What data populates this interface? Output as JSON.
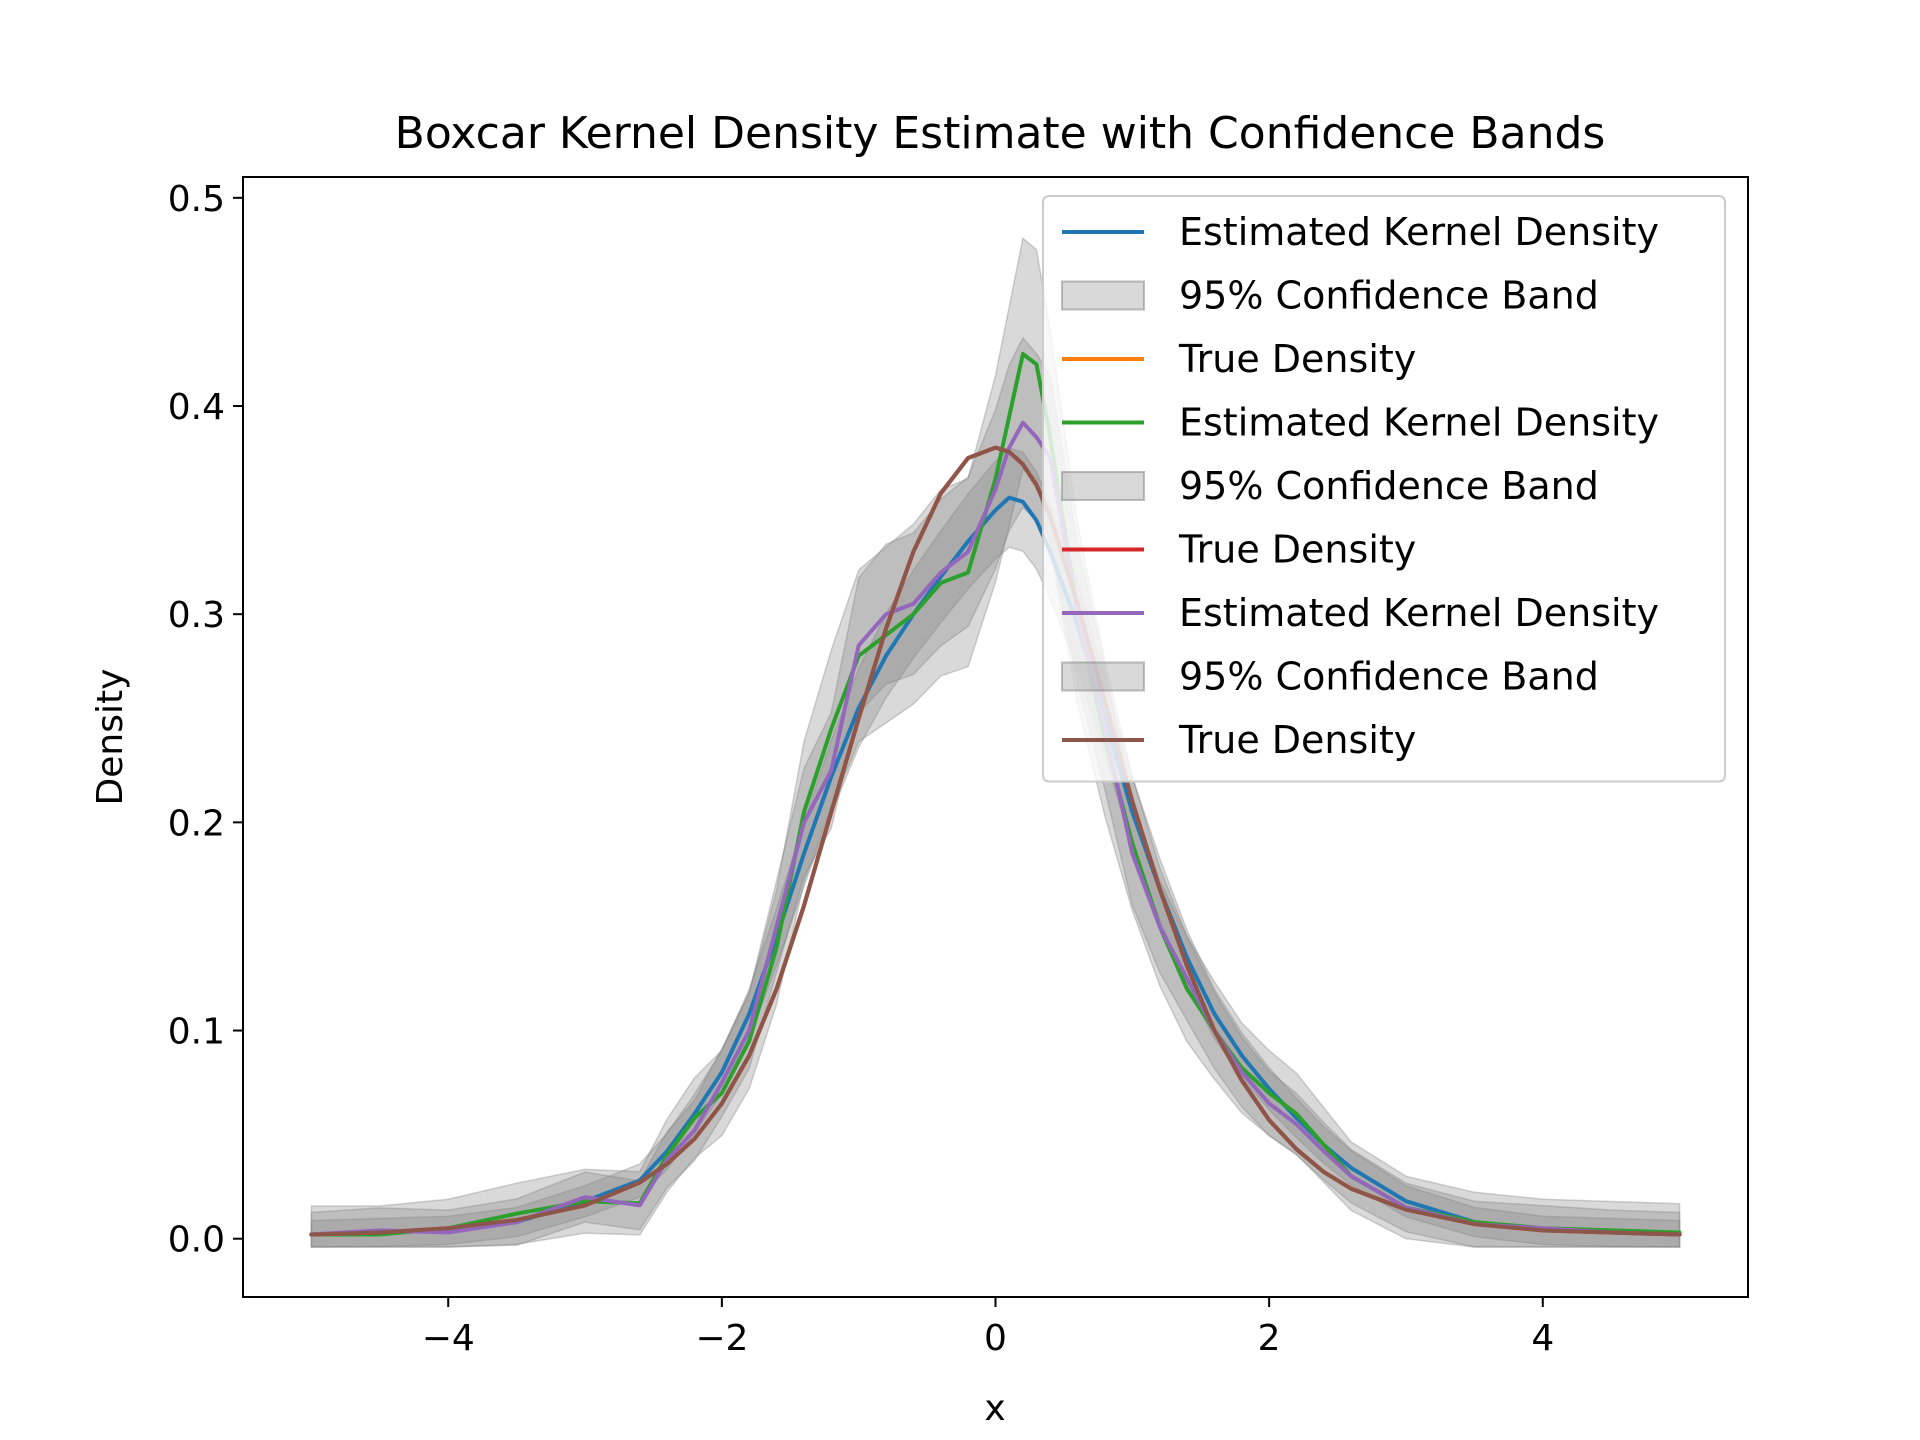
{
  "chart_data": {
    "type": "line",
    "title": "Boxcar Kernel Density Estimate with Confidence Bands",
    "xlabel": "x",
    "ylabel": "Density",
    "xlim": [
      -5.5,
      5.5
    ],
    "ylim": [
      -0.028,
      0.51
    ],
    "xticks": [
      -4,
      -2,
      0,
      2,
      4
    ],
    "xtick_labels": [
      "−4",
      "−2",
      "0",
      "2",
      "4"
    ],
    "yticks": [
      0.0,
      0.1,
      0.2,
      0.3,
      0.4,
      0.5
    ],
    "ytick_labels": [
      "0.0",
      "0.1",
      "0.2",
      "0.3",
      "0.4",
      "0.5"
    ],
    "grid": false,
    "legend_position": "top-right",
    "legend": [
      {
        "label": "Estimated Kernel Density",
        "kind": "line",
        "color": "#1f77b4"
      },
      {
        "label": "95% Confidence Band",
        "kind": "patch",
        "color": "#808080"
      },
      {
        "label": "True Density",
        "kind": "line",
        "color": "#ff7f0e"
      },
      {
        "label": "Estimated Kernel Density",
        "kind": "line",
        "color": "#2ca02c"
      },
      {
        "label": "95% Confidence Band",
        "kind": "patch",
        "color": "#808080"
      },
      {
        "label": "True Density",
        "kind": "line",
        "color": "#d62728"
      },
      {
        "label": "Estimated Kernel Density",
        "kind": "line",
        "color": "#9467bd"
      },
      {
        "label": "95% Confidence Band",
        "kind": "patch",
        "color": "#808080"
      },
      {
        "label": "True Density",
        "kind": "line",
        "color": "#8c564b"
      }
    ],
    "x": [
      -5.0,
      -4.5,
      -4.0,
      -3.5,
      -3.0,
      -2.6,
      -2.4,
      -2.2,
      -2.0,
      -1.8,
      -1.6,
      -1.4,
      -1.2,
      -1.0,
      -0.8,
      -0.6,
      -0.4,
      -0.2,
      0.0,
      0.1,
      0.2,
      0.3,
      0.4,
      0.6,
      0.8,
      1.0,
      1.2,
      1.4,
      1.6,
      1.8,
      2.0,
      2.2,
      2.4,
      2.6,
      3.0,
      3.5,
      4.0,
      4.5,
      5.0
    ],
    "series": [
      {
        "name": "Estimated Kernel Density",
        "color": "#1f77b4",
        "band_width": 0.022,
        "values": [
          0.002,
          0.003,
          0.004,
          0.008,
          0.018,
          0.028,
          0.042,
          0.06,
          0.08,
          0.108,
          0.145,
          0.185,
          0.222,
          0.255,
          0.28,
          0.3,
          0.318,
          0.335,
          0.35,
          0.356,
          0.354,
          0.345,
          0.33,
          0.295,
          0.25,
          0.205,
          0.168,
          0.135,
          0.108,
          0.088,
          0.072,
          0.058,
          0.045,
          0.034,
          0.018,
          0.008,
          0.004,
          0.003,
          0.002
        ]
      },
      {
        "name": "True Density",
        "color": "#ff7f0e",
        "band_width": 0,
        "values": [
          0.002,
          0.003,
          0.005,
          0.009,
          0.016,
          0.027,
          0.036,
          0.048,
          0.065,
          0.088,
          0.12,
          0.16,
          0.205,
          0.25,
          0.293,
          0.33,
          0.358,
          0.375,
          0.38,
          0.378,
          0.372,
          0.362,
          0.347,
          0.305,
          0.258,
          0.21,
          0.168,
          0.131,
          0.1,
          0.076,
          0.057,
          0.043,
          0.032,
          0.024,
          0.014,
          0.007,
          0.004,
          0.003,
          0.002
        ]
      },
      {
        "name": "Estimated Kernel Density",
        "color": "#2ca02c",
        "band_width": 0.045,
        "values": [
          0.002,
          0.002,
          0.005,
          0.012,
          0.018,
          0.017,
          0.04,
          0.058,
          0.07,
          0.095,
          0.14,
          0.205,
          0.245,
          0.28,
          0.29,
          0.3,
          0.315,
          0.32,
          0.365,
          0.395,
          0.425,
          0.42,
          0.385,
          0.3,
          0.24,
          0.19,
          0.15,
          0.12,
          0.1,
          0.082,
          0.07,
          0.06,
          0.045,
          0.03,
          0.015,
          0.008,
          0.005,
          0.004,
          0.003
        ]
      },
      {
        "name": "True Density",
        "color": "#d62728",
        "band_width": 0,
        "values": [
          0.002,
          0.003,
          0.005,
          0.009,
          0.016,
          0.027,
          0.036,
          0.048,
          0.065,
          0.088,
          0.12,
          0.16,
          0.205,
          0.25,
          0.293,
          0.33,
          0.358,
          0.375,
          0.38,
          0.378,
          0.372,
          0.362,
          0.347,
          0.305,
          0.258,
          0.21,
          0.168,
          0.131,
          0.1,
          0.076,
          0.057,
          0.043,
          0.032,
          0.024,
          0.014,
          0.007,
          0.004,
          0.003,
          0.002
        ]
      },
      {
        "name": "Estimated Kernel Density",
        "color": "#9467bd",
        "band_width": 0.035,
        "values": [
          0.002,
          0.004,
          0.003,
          0.008,
          0.02,
          0.016,
          0.038,
          0.052,
          0.075,
          0.1,
          0.15,
          0.2,
          0.225,
          0.285,
          0.3,
          0.305,
          0.32,
          0.33,
          0.36,
          0.38,
          0.392,
          0.385,
          0.375,
          0.3,
          0.245,
          0.185,
          0.15,
          0.125,
          0.1,
          0.08,
          0.065,
          0.055,
          0.042,
          0.03,
          0.015,
          0.007,
          0.005,
          0.003,
          0.002
        ]
      },
      {
        "name": "True Density",
        "color": "#8c564b",
        "band_width": 0,
        "values": [
          0.002,
          0.003,
          0.005,
          0.009,
          0.016,
          0.027,
          0.036,
          0.048,
          0.065,
          0.088,
          0.12,
          0.16,
          0.205,
          0.25,
          0.293,
          0.33,
          0.358,
          0.375,
          0.38,
          0.378,
          0.372,
          0.362,
          0.347,
          0.305,
          0.258,
          0.21,
          0.168,
          0.131,
          0.1,
          0.076,
          0.057,
          0.043,
          0.032,
          0.024,
          0.014,
          0.007,
          0.004,
          0.003,
          0.002
        ]
      }
    ]
  }
}
